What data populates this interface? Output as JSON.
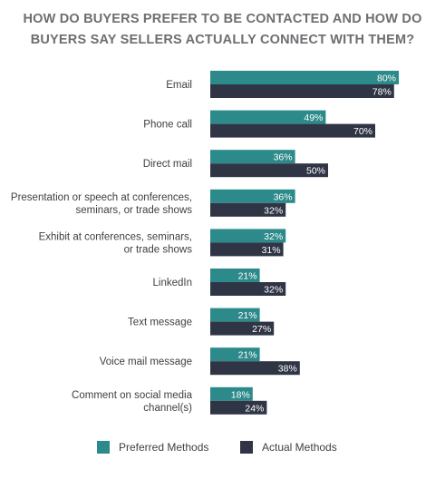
{
  "colors": {
    "preferred": "#2c8a8a",
    "actual": "#2f3545"
  },
  "chart_data": {
    "type": "bar",
    "orientation": "horizontal",
    "title_lines": [
      "HOW DO BUYERS PREFER TO BE CONTACTED AND HOW DO",
      "BUYERS SAY SELLERS ACTUALLY CONNECT WITH THEM?"
    ],
    "categories": [
      [
        "Email"
      ],
      [
        "Phone call"
      ],
      [
        "Direct mail"
      ],
      [
        "Presentation or speech at conferences,",
        "seminars, or trade shows"
      ],
      [
        "Exhibit at conferences, seminars,",
        "or trade shows"
      ],
      [
        "LinkedIn"
      ],
      [
        "Text message"
      ],
      [
        "Voice mail message"
      ],
      [
        "Comment on social media",
        "channel(s)"
      ]
    ],
    "series": [
      {
        "name": "Preferred Methods",
        "values": [
          80,
          49,
          36,
          36,
          32,
          21,
          21,
          21,
          18
        ]
      },
      {
        "name": "Actual Methods",
        "values": [
          78,
          70,
          50,
          32,
          31,
          32,
          27,
          38,
          24
        ]
      }
    ],
    "value_suffix": "%",
    "xlim": [
      0,
      100
    ],
    "grid": false,
    "legend_position": "bottom"
  }
}
